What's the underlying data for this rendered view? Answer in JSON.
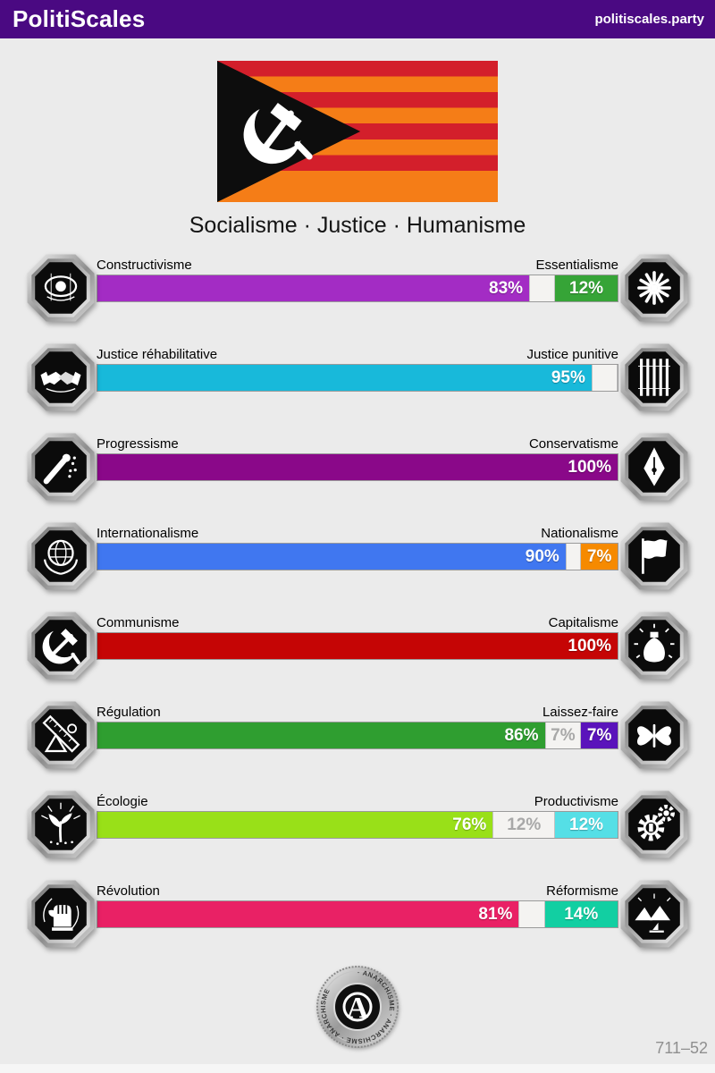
{
  "header": {
    "title": "PolitiScales",
    "site": "politiscales.party",
    "bg_color": "#4a0982"
  },
  "flag": {
    "red": "#d31f2b",
    "orange": "#f57d17",
    "triangle": "#0d0d0d",
    "symbol": "hammer-and-sickle"
  },
  "tagline": "Socialisme · Justice · Humanisme",
  "chart_data": {
    "type": "bar",
    "title": "PolitiScales results",
    "categories": [
      "Constructivisme/Essentialisme",
      "Justice réhabilitative/Justice punitive",
      "Progressisme/Conservatisme",
      "Internationalisme/Nationalisme",
      "Communisme/Capitalisme",
      "Régulation/Laissez-faire",
      "Écologie/Productivisme",
      "Révolution/Réformisme"
    ],
    "series": [
      {
        "name": "left",
        "values": [
          83,
          95,
          100,
          90,
          100,
          86,
          76,
          81
        ]
      },
      {
        "name": "neutral",
        "values": [
          5,
          5,
          0,
          3,
          0,
          7,
          12,
          5
        ]
      },
      {
        "name": "right",
        "values": [
          12,
          0,
          0,
          7,
          0,
          7,
          12,
          14
        ]
      }
    ],
    "xlim": [
      0,
      100
    ]
  },
  "axes": [
    {
      "left_label": "Constructivisme",
      "right_label": "Essentialisme",
      "left_pct": 83,
      "neutral_pct": 5,
      "right_pct": 12,
      "left_text": "83%",
      "neutral_text": "",
      "right_text": "12%",
      "left_color": "#a32cc4",
      "right_color": "#36a437",
      "left_icon": "eye",
      "right_icon": "chrysanthemum"
    },
    {
      "left_label": "Justice réhabilitative",
      "right_label": "Justice punitive",
      "left_pct": 95,
      "neutral_pct": 5,
      "right_pct": 0,
      "left_text": "95%",
      "neutral_text": "",
      "right_text": "",
      "left_color": "#18b9da",
      "right_color": "",
      "left_icon": "handshake",
      "right_icon": "prison-bars"
    },
    {
      "left_label": "Progressisme",
      "right_label": "Conservatisme",
      "left_pct": 100,
      "neutral_pct": 0,
      "right_pct": 0,
      "left_text": "100%",
      "neutral_text": "",
      "right_text": "",
      "left_color": "#8a0889",
      "right_color": "",
      "left_icon": "sowing-hand",
      "right_icon": "fountain-pen"
    },
    {
      "left_label": "Internationalisme",
      "right_label": "Nationalisme",
      "left_pct": 90,
      "neutral_pct": 3,
      "right_pct": 7,
      "left_text": "90%",
      "neutral_text": "",
      "right_text": "7%",
      "left_color": "#4077f0",
      "right_color": "#f68a00",
      "left_icon": "globe-laurel",
      "right_icon": "flag"
    },
    {
      "left_label": "Communisme",
      "right_label": "Capitalisme",
      "left_pct": 100,
      "neutral_pct": 0,
      "right_pct": 0,
      "left_text": "100%",
      "neutral_text": "",
      "right_text": "",
      "left_color": "#c50505",
      "right_color": "",
      "left_icon": "hammer-sickle",
      "right_icon": "money-bag"
    },
    {
      "left_label": "Régulation",
      "right_label": "Laissez-faire",
      "left_pct": 86,
      "neutral_pct": 7,
      "right_pct": 7,
      "left_text": "86%",
      "neutral_text": "7%",
      "right_text": "7%",
      "left_color": "#2f9e30",
      "right_color": "#5a13bb",
      "left_icon": "ruler-square",
      "right_icon": "butterfly"
    },
    {
      "left_label": "Écologie",
      "right_label": "Productivisme",
      "left_pct": 76,
      "neutral_pct": 12,
      "right_pct": 12,
      "left_text": "76%",
      "neutral_text": "12%",
      "right_text": "12%",
      "left_color": "#99e018",
      "right_color": "#55dfe6",
      "left_icon": "plant-sun",
      "right_icon": "gears"
    },
    {
      "left_label": "Révolution",
      "right_label": "Réformisme",
      "left_pct": 81,
      "neutral_pct": 5,
      "right_pct": 14,
      "left_text": "81%",
      "neutral_text": "",
      "right_text": "14%",
      "left_color": "#e92165",
      "right_color": "#12cfa2",
      "left_icon": "fist",
      "right_icon": "landscape-boat"
    }
  ],
  "footer": {
    "seal_ring_text": "· ANARCHISME · ANARCHISME · ANARCHISME ",
    "seal_center": "A",
    "code": "711–52"
  }
}
